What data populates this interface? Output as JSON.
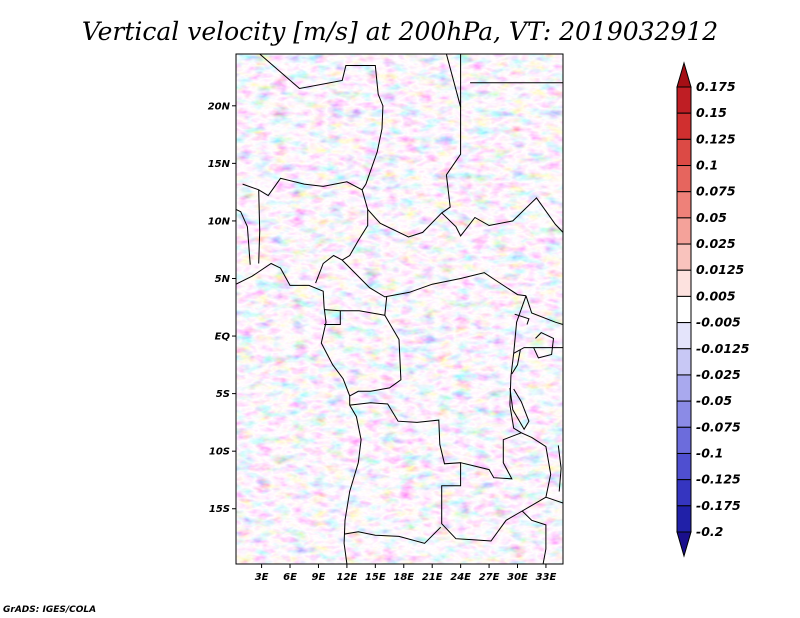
{
  "chart_data": {
    "type": "heatmap",
    "title": "Vertical velocity [m/s] at 200hPa, VT: 2019032912",
    "variable": "Vertical velocity",
    "units": "m/s",
    "level": "200hPa",
    "valid_time": "2019032912",
    "x_ticks": [
      "3E",
      "6E",
      "9E",
      "12E",
      "15E",
      "18E",
      "21E",
      "24E",
      "27E",
      "30E",
      "33E"
    ],
    "x_tick_values": [
      3,
      6,
      9,
      12,
      15,
      18,
      21,
      24,
      27,
      30,
      33
    ],
    "y_ticks": [
      "20N",
      "15N",
      "10N",
      "5N",
      "EQ",
      "5S",
      "10S",
      "15S"
    ],
    "y_tick_values": [
      20,
      15,
      10,
      5,
      0,
      -5,
      -10,
      -15
    ],
    "xlim": [
      0.3,
      34.8
    ],
    "ylim": [
      -19.8,
      24.5
    ],
    "colorbar": {
      "labels": [
        "0.175",
        "0.15",
        "0.125",
        "0.1",
        "0.075",
        "0.05",
        "0.025",
        "0.0125",
        "0.005",
        "-0.005",
        "-0.0125",
        "-0.025",
        "-0.05",
        "-0.075",
        "-0.1",
        "-0.125",
        "-0.175",
        "-0.2"
      ],
      "colors": [
        "#a50f15",
        "#bf1e24",
        "#d02f2f",
        "#dc4a45",
        "#e6655e",
        "#ee8179",
        "#f4a29a",
        "#f9c3bd",
        "#fde2df",
        "#ffffff",
        "#e4e4fb",
        "#c8c8f5",
        "#a9a9ee",
        "#8b8be6",
        "#6c6cdc",
        "#4f4fd0",
        "#3535c0",
        "#2020a8",
        "#1a0f8c"
      ],
      "extend": "both"
    }
  },
  "credit": "GrADS: IGES/COLA"
}
